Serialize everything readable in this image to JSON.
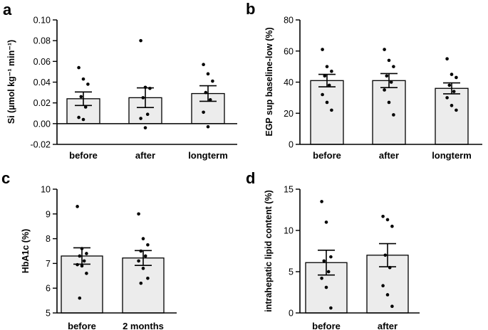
{
  "chart_data": [
    {
      "panel": "a",
      "type": "bar",
      "ylabel": "Si (µmol kg⁻¹ min⁻¹)",
      "ylim": [
        -0.02,
        0.1
      ],
      "yticks": [
        -0.02,
        0.0,
        0.02,
        0.04,
        0.06,
        0.08,
        0.1
      ],
      "ytick_labels": [
        "-0.02",
        "0.00",
        "0.02",
        "0.04",
        "0.06",
        "0.08",
        "0.10"
      ],
      "zero_line": true,
      "categories": [
        "before",
        "after",
        "longterm"
      ],
      "values": [
        0.024,
        0.025,
        0.029
      ],
      "sem": [
        0.0065,
        0.0095,
        0.0075
      ],
      "points": [
        [
          0.054,
          0.043,
          0.038,
          0.026,
          0.016,
          0.006,
          0.004
        ],
        [
          0.08,
          0.035,
          0.034,
          0.025,
          0.009,
          0.005,
          -0.004
        ],
        [
          0.057,
          0.048,
          0.041,
          0.03,
          0.023,
          0.011,
          -0.003
        ]
      ]
    },
    {
      "panel": "b",
      "type": "bar",
      "ylabel": "EGP sup baseline-low (%)",
      "ylim": [
        0,
        80
      ],
      "yticks": [
        0,
        20,
        40,
        60,
        80
      ],
      "ytick_labels": [
        "0",
        "20",
        "40",
        "60",
        "80"
      ],
      "zero_line": false,
      "categories": [
        "before",
        "after",
        "longterm"
      ],
      "values": [
        41,
        41,
        36
      ],
      "sem": [
        4,
        4.5,
        3.5
      ],
      "points": [
        [
          61,
          50,
          47,
          44,
          38,
          32,
          27,
          22
        ],
        [
          61,
          54,
          50,
          44,
          40,
          35,
          27,
          19
        ],
        [
          55,
          45,
          43,
          38,
          34,
          30,
          25,
          22
        ]
      ]
    },
    {
      "panel": "c",
      "type": "bar",
      "ylabel": "HbA1c (%)",
      "ylim": [
        5,
        10
      ],
      "yticks": [
        5,
        6,
        7,
        8,
        9,
        10
      ],
      "ytick_labels": [
        "5",
        "6",
        "7",
        "8",
        "9",
        "10"
      ],
      "zero_line": false,
      "categories": [
        "before",
        "2 months"
      ],
      "values": [
        7.3,
        7.22
      ],
      "sem": [
        0.33,
        0.3
      ],
      "points": [
        [
          9.3,
          7.6,
          7.4,
          7.3,
          7.1,
          6.95,
          6.9,
          6.6,
          5.6
        ],
        [
          9.0,
          8.0,
          7.75,
          7.5,
          7.3,
          7.1,
          6.8,
          6.4,
          6.2
        ]
      ]
    },
    {
      "panel": "d",
      "type": "bar",
      "ylabel": "intrahepatic lipid content (%)",
      "ylim": [
        0,
        15
      ],
      "yticks": [
        0,
        5,
        10,
        15
      ],
      "ytick_labels": [
        "0",
        "5",
        "10",
        "15"
      ],
      "zero_line": false,
      "categories": [
        "before",
        "after"
      ],
      "values": [
        6.1,
        7.0
      ],
      "sem": [
        1.5,
        1.4
      ],
      "points": [
        [
          13.5,
          11.0,
          6.8,
          6.3,
          5.0,
          4.2,
          3.1,
          0.6
        ],
        [
          11.7,
          11.3,
          10.5,
          7.0,
          5.5,
          3.3,
          2.2,
          0.8
        ]
      ]
    }
  ]
}
